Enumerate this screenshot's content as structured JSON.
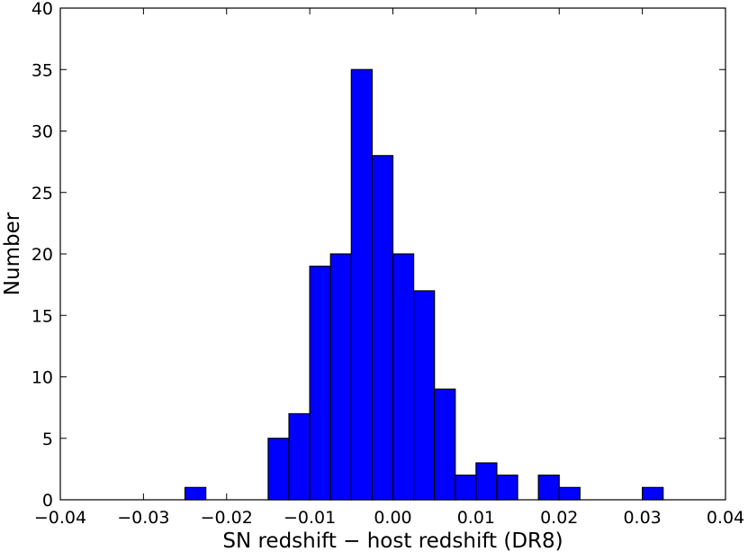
{
  "chart_data": {
    "type": "bar",
    "title": "",
    "xlabel": "SN redshift − host redshift (DR8)",
    "ylabel": "Number",
    "xlim": [
      -0.04,
      0.04
    ],
    "ylim": [
      0,
      40
    ],
    "bin_width": 0.0025,
    "bins": [
      {
        "x0": -0.025,
        "x1": -0.0225,
        "value": 1
      },
      {
        "x0": -0.015,
        "x1": -0.0125,
        "value": 5
      },
      {
        "x0": -0.0125,
        "x1": -0.01,
        "value": 7
      },
      {
        "x0": -0.01,
        "x1": -0.0075,
        "value": 19
      },
      {
        "x0": -0.0075,
        "x1": -0.005,
        "value": 20
      },
      {
        "x0": -0.005,
        "x1": -0.0025,
        "value": 35
      },
      {
        "x0": -0.0025,
        "x1": 0.0,
        "value": 28
      },
      {
        "x0": 0.0,
        "x1": 0.0025,
        "value": 20
      },
      {
        "x0": 0.0025,
        "x1": 0.005,
        "value": 17
      },
      {
        "x0": 0.005,
        "x1": 0.0075,
        "value": 9
      },
      {
        "x0": 0.0075,
        "x1": 0.01,
        "value": 2
      },
      {
        "x0": 0.01,
        "x1": 0.0125,
        "value": 3
      },
      {
        "x0": 0.0125,
        "x1": 0.015,
        "value": 2
      },
      {
        "x0": 0.0175,
        "x1": 0.02,
        "value": 2
      },
      {
        "x0": 0.02,
        "x1": 0.0225,
        "value": 1
      },
      {
        "x0": 0.03,
        "x1": 0.0325,
        "value": 1
      }
    ],
    "x_ticks": [
      -0.04,
      -0.03,
      -0.02,
      -0.01,
      0.0,
      0.01,
      0.02,
      0.03,
      0.04
    ],
    "x_tick_labels": [
      "−0.04",
      "−0.03",
      "−0.02",
      "−0.01",
      "0.00",
      "0.01",
      "0.02",
      "0.03",
      "0.04"
    ],
    "y_ticks": [
      0,
      5,
      10,
      15,
      20,
      25,
      30,
      35,
      40
    ],
    "y_tick_labels": [
      "0",
      "5",
      "10",
      "15",
      "20",
      "25",
      "30",
      "35",
      "40"
    ],
    "bar_color": "#0000ff",
    "edge_color": "#000000",
    "grid": false,
    "legend": "none"
  }
}
